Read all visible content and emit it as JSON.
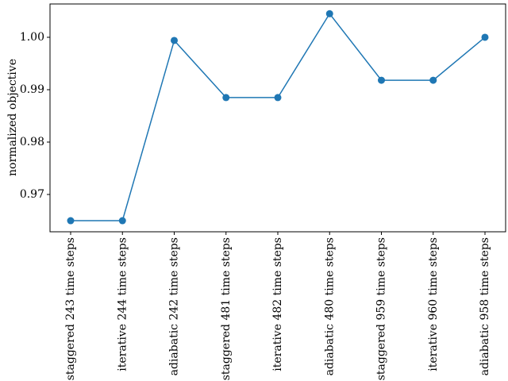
{
  "chart_data": {
    "type": "line",
    "ylabel": "normalized objective",
    "categories": [
      "staggered 243 time steps",
      "iterative 244 time steps",
      "adiabatic 242 time steps",
      "staggered 481 time steps",
      "iterative 482 time steps",
      "adiabatic 480 time steps",
      "staggered 959 time steps",
      "iterative 960 time steps",
      "adiabatic 958 time steps"
    ],
    "values": [
      0.965,
      0.965,
      0.9994,
      0.9885,
      0.9885,
      1.0045,
      0.9918,
      0.9918,
      1.0
    ],
    "color": "#1f77b4",
    "markers": true,
    "ylim": [
      0.96288,
      1.00636
    ],
    "yticks": [
      0.97,
      0.98,
      0.99,
      {
        "value": 1,
        "label": "1.00"
      }
    ],
    "grid": false
  }
}
